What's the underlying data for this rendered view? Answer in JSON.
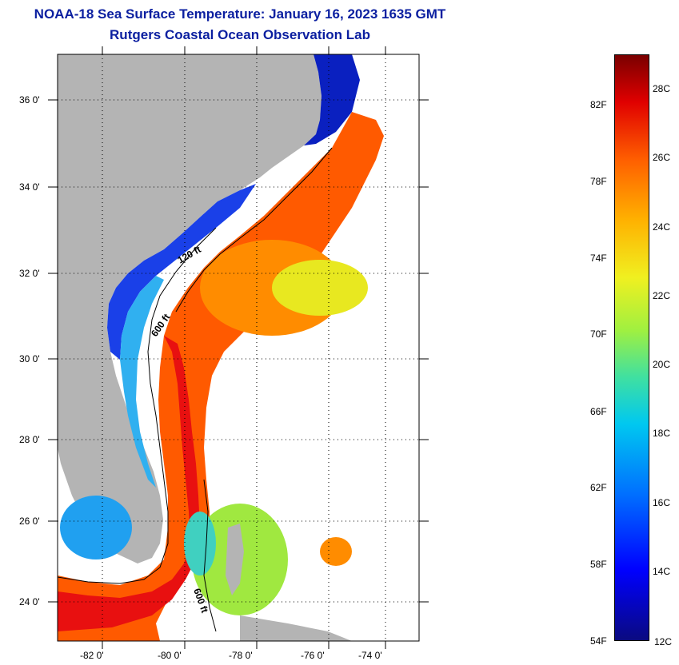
{
  "header": {
    "title": "NOAA-18 Sea Surface Temperature:  January 16, 2023 1635 GMT",
    "subtitle": "Rutgers Coastal Ocean Observation Lab"
  },
  "map": {
    "lat_labels": [
      "36 0'",
      "34 0'",
      "32 0'",
      "30 0'",
      "28 0'",
      "26 0'",
      "24 0'"
    ],
    "lon_labels": [
      "-82 0'",
      "-80 0'",
      "-78 0'",
      "-76 0'",
      "-74 0'"
    ],
    "contour_labels": [
      "120 ft",
      "600 ft",
      "600 ft"
    ],
    "colors": {
      "land": "#b4b4b4",
      "cold": "#0a20c0",
      "warm": "#ff5a00",
      "hot": "#e81010",
      "mid": "#c8f020"
    }
  },
  "colorbar": {
    "fahrenheit": [
      "82F",
      "78F",
      "74F",
      "70F",
      "66F",
      "62F",
      "58F",
      "54F"
    ],
    "celsius": [
      "28C",
      "26C",
      "24C",
      "22C",
      "20C",
      "18C",
      "16C",
      "14C",
      "12C"
    ]
  }
}
